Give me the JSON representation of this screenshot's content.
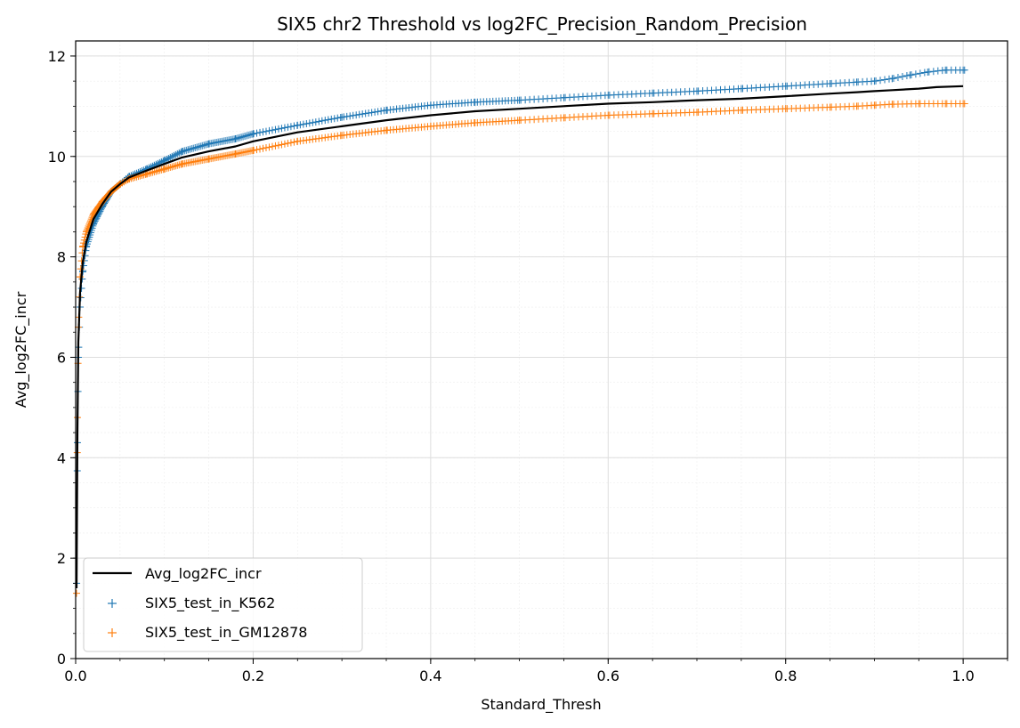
{
  "chart_data": {
    "type": "scatter",
    "title": "SIX5 chr2 Threshold vs log2FC_Precision_Random_Precision",
    "xlabel": "Standard_Thresh",
    "ylabel": "Avg_log2FC_incr",
    "xlim": [
      0.0,
      1.05
    ],
    "ylim": [
      0,
      12.3
    ],
    "xticks": [
      "0.0",
      "0.2",
      "0.4",
      "0.6",
      "0.8",
      "1.0"
    ],
    "yticks": [
      "0",
      "2",
      "4",
      "6",
      "8",
      "10",
      "12"
    ],
    "grid": true,
    "legend_position": "lower-left",
    "series": [
      {
        "name": "Avg_log2FC_incr",
        "kind": "line",
        "color": "#000000",
        "points": [
          [
            0.001,
            1.4
          ],
          [
            0.002,
            4.5
          ],
          [
            0.003,
            6.3
          ],
          [
            0.005,
            7.3
          ],
          [
            0.008,
            7.9
          ],
          [
            0.012,
            8.3
          ],
          [
            0.02,
            8.75
          ],
          [
            0.03,
            9.05
          ],
          [
            0.04,
            9.3
          ],
          [
            0.05,
            9.45
          ],
          [
            0.06,
            9.58
          ],
          [
            0.08,
            9.72
          ],
          [
            0.1,
            9.85
          ],
          [
            0.12,
            9.98
          ],
          [
            0.15,
            10.1
          ],
          [
            0.18,
            10.2
          ],
          [
            0.2,
            10.3
          ],
          [
            0.25,
            10.48
          ],
          [
            0.3,
            10.6
          ],
          [
            0.35,
            10.72
          ],
          [
            0.4,
            10.82
          ],
          [
            0.45,
            10.9
          ],
          [
            0.5,
            10.95
          ],
          [
            0.55,
            11.0
          ],
          [
            0.6,
            11.05
          ],
          [
            0.65,
            11.08
          ],
          [
            0.7,
            11.12
          ],
          [
            0.75,
            11.15
          ],
          [
            0.8,
            11.2
          ],
          [
            0.85,
            11.25
          ],
          [
            0.88,
            11.28
          ],
          [
            0.9,
            11.3
          ],
          [
            0.92,
            11.32
          ],
          [
            0.95,
            11.35
          ],
          [
            0.97,
            11.38
          ],
          [
            1.0,
            11.4
          ]
        ]
      },
      {
        "name": "SIX5_test_in_K562",
        "kind": "scatter",
        "marker": "+",
        "color": "#1f77b4",
        "points": [
          [
            0.001,
            1.5
          ],
          [
            0.002,
            4.3
          ],
          [
            0.003,
            6.0
          ],
          [
            0.005,
            7.0
          ],
          [
            0.008,
            7.7
          ],
          [
            0.012,
            8.2
          ],
          [
            0.02,
            8.65
          ],
          [
            0.03,
            9.0
          ],
          [
            0.04,
            9.3
          ],
          [
            0.05,
            9.45
          ],
          [
            0.06,
            9.6
          ],
          [
            0.08,
            9.75
          ],
          [
            0.1,
            9.92
          ],
          [
            0.12,
            10.1
          ],
          [
            0.15,
            10.25
          ],
          [
            0.18,
            10.35
          ],
          [
            0.2,
            10.45
          ],
          [
            0.25,
            10.62
          ],
          [
            0.3,
            10.78
          ],
          [
            0.35,
            10.92
          ],
          [
            0.4,
            11.02
          ],
          [
            0.45,
            11.08
          ],
          [
            0.5,
            11.12
          ],
          [
            0.55,
            11.17
          ],
          [
            0.6,
            11.22
          ],
          [
            0.65,
            11.26
          ],
          [
            0.7,
            11.3
          ],
          [
            0.75,
            11.35
          ],
          [
            0.8,
            11.4
          ],
          [
            0.85,
            11.45
          ],
          [
            0.88,
            11.48
          ],
          [
            0.9,
            11.5
          ],
          [
            0.92,
            11.55
          ],
          [
            0.94,
            11.62
          ],
          [
            0.96,
            11.68
          ],
          [
            0.98,
            11.72
          ],
          [
            1.0,
            11.72
          ]
        ]
      },
      {
        "name": "SIX5_test_in_GM12878",
        "kind": "scatter",
        "marker": "+",
        "color": "#ff7f0e",
        "points": [
          [
            0.001,
            1.3
          ],
          [
            0.002,
            4.8
          ],
          [
            0.003,
            6.6
          ],
          [
            0.005,
            7.6
          ],
          [
            0.008,
            8.2
          ],
          [
            0.012,
            8.5
          ],
          [
            0.02,
            8.85
          ],
          [
            0.03,
            9.1
          ],
          [
            0.04,
            9.3
          ],
          [
            0.05,
            9.45
          ],
          [
            0.06,
            9.55
          ],
          [
            0.08,
            9.65
          ],
          [
            0.1,
            9.75
          ],
          [
            0.12,
            9.85
          ],
          [
            0.15,
            9.95
          ],
          [
            0.18,
            10.05
          ],
          [
            0.2,
            10.12
          ],
          [
            0.25,
            10.3
          ],
          [
            0.3,
            10.42
          ],
          [
            0.35,
            10.52
          ],
          [
            0.4,
            10.6
          ],
          [
            0.45,
            10.67
          ],
          [
            0.5,
            10.72
          ],
          [
            0.55,
            10.77
          ],
          [
            0.6,
            10.82
          ],
          [
            0.65,
            10.85
          ],
          [
            0.7,
            10.88
          ],
          [
            0.75,
            10.92
          ],
          [
            0.8,
            10.95
          ],
          [
            0.85,
            10.98
          ],
          [
            0.88,
            11.0
          ],
          [
            0.9,
            11.02
          ],
          [
            0.92,
            11.04
          ],
          [
            0.95,
            11.05
          ],
          [
            0.98,
            11.05
          ],
          [
            1.0,
            11.05
          ]
        ]
      }
    ]
  }
}
